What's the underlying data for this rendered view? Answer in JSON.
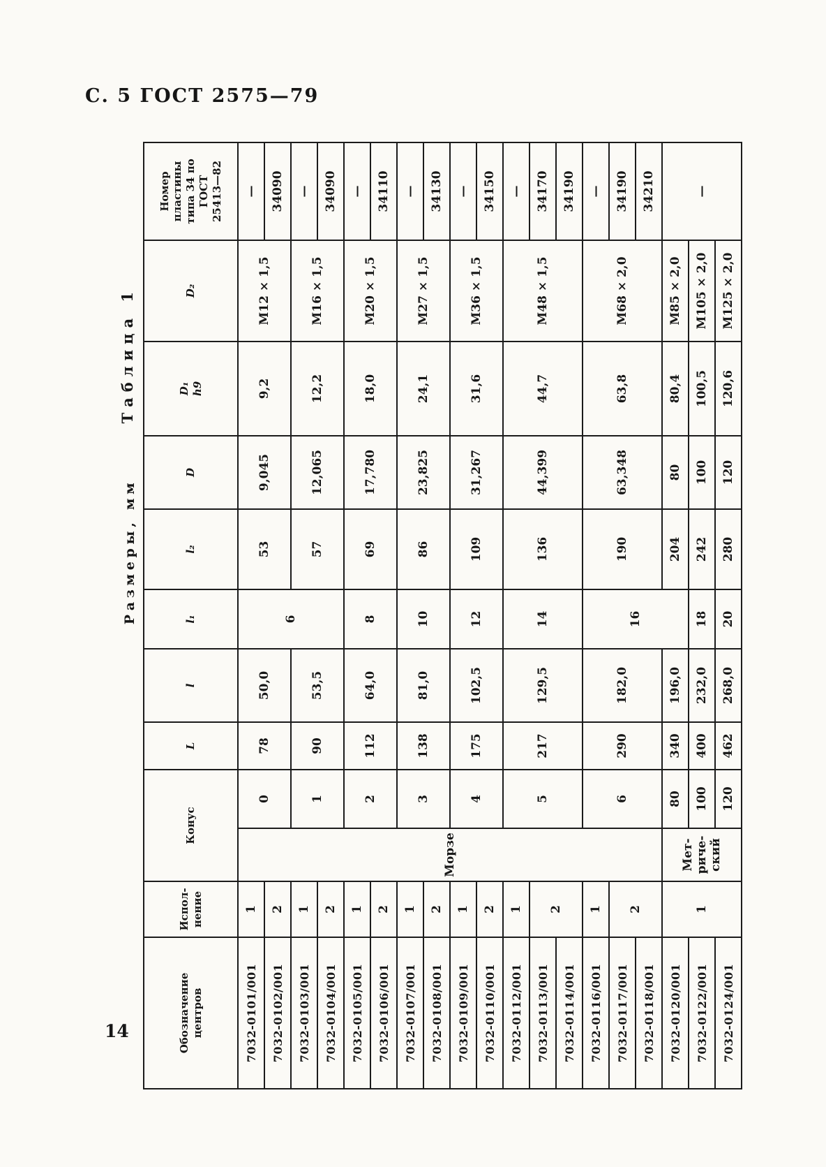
{
  "page": {
    "header_text": "С. 5 ГОСТ 2575—79",
    "page_number": "14",
    "ink_color": "#1b1b1b",
    "paper_color": "#fbfaf6"
  },
  "table": {
    "caption": "Таблица 1",
    "units_label": "Размеры, мм",
    "header": [
      {
        "t": "Обозначение\nцентров"
      },
      {
        "t": "Испол-\nнение"
      },
      {
        "t": "Конус",
        "colspan": 2
      },
      {
        "t": "L",
        "it": true
      },
      {
        "t": "l",
        "it": true
      },
      {
        "t": "l₁",
        "it": true
      },
      {
        "t": "l₂",
        "it": true
      },
      {
        "t": "D",
        "it": true
      },
      {
        "t": "D₁\nh9",
        "it": true
      },
      {
        "t": "D₂",
        "it": true
      },
      {
        "t": "Номер\nпластины\nтипа 34 по\nГОСТ\n25413—82"
      }
    ],
    "rows": [
      [
        {
          "t": "7032-0101/001"
        },
        {
          "t": "1"
        },
        {
          "t": "Морзе",
          "rs": 16
        },
        {
          "t": "0",
          "rs": 2
        },
        {
          "t": "78",
          "rs": 2
        },
        {
          "t": "50,0",
          "rs": 2
        },
        {
          "t": "6",
          "rs": 4
        },
        {
          "t": "53",
          "rs": 2
        },
        {
          "t": "9,045",
          "rs": 2
        },
        {
          "t": "9,2",
          "rs": 2
        },
        {
          "t": "М12 × 1,5",
          "rs": 2
        },
        {
          "t": "—"
        }
      ],
      [
        {
          "t": "7032-0102/001"
        },
        {
          "t": "2"
        },
        {
          "t": "34090"
        }
      ],
      [
        {
          "t": "7032-0103/001"
        },
        {
          "t": "1"
        },
        {
          "t": "1",
          "rs": 2
        },
        {
          "t": "90",
          "rs": 2
        },
        {
          "t": "53,5",
          "rs": 2
        },
        {
          "t": "57",
          "rs": 2
        },
        {
          "t": "12,065",
          "rs": 2
        },
        {
          "t": "12,2",
          "rs": 2
        },
        {
          "t": "М16 × 1,5",
          "rs": 2
        },
        {
          "t": "—"
        }
      ],
      [
        {
          "t": "7032-0104/001"
        },
        {
          "t": "2"
        },
        {
          "t": "34090"
        }
      ],
      [
        {
          "t": "7032-0105/001"
        },
        {
          "t": "1"
        },
        {
          "t": "2",
          "rs": 2
        },
        {
          "t": "112",
          "rs": 2
        },
        {
          "t": "64,0",
          "rs": 2
        },
        {
          "t": "8",
          "rs": 2
        },
        {
          "t": "69",
          "rs": 2
        },
        {
          "t": "17,780",
          "rs": 2
        },
        {
          "t": "18,0",
          "rs": 2
        },
        {
          "t": "М20 × 1,5",
          "rs": 2
        },
        {
          "t": "—"
        }
      ],
      [
        {
          "t": "7032-0106/001"
        },
        {
          "t": "2"
        },
        {
          "t": "34110"
        }
      ],
      [
        {
          "t": "7032-0107/001"
        },
        {
          "t": "1"
        },
        {
          "t": "3",
          "rs": 2
        },
        {
          "t": "138",
          "rs": 2
        },
        {
          "t": "81,0",
          "rs": 2
        },
        {
          "t": "10",
          "rs": 2
        },
        {
          "t": "86",
          "rs": 2
        },
        {
          "t": "23,825",
          "rs": 2
        },
        {
          "t": "24,1",
          "rs": 2
        },
        {
          "t": "М27 × 1,5",
          "rs": 2
        },
        {
          "t": "—"
        }
      ],
      [
        {
          "t": "7032-0108/001"
        },
        {
          "t": "2"
        },
        {
          "t": "34130"
        }
      ],
      [
        {
          "t": "7032-0109/001"
        },
        {
          "t": "1"
        },
        {
          "t": "4",
          "rs": 2
        },
        {
          "t": "175",
          "rs": 2
        },
        {
          "t": "102,5",
          "rs": 2
        },
        {
          "t": "12",
          "rs": 2
        },
        {
          "t": "109",
          "rs": 2
        },
        {
          "t": "31,267",
          "rs": 2
        },
        {
          "t": "31,6",
          "rs": 2
        },
        {
          "t": "М36 × 1,5",
          "rs": 2
        },
        {
          "t": "—"
        }
      ],
      [
        {
          "t": "7032-0110/001"
        },
        {
          "t": "2"
        },
        {
          "t": "34150"
        }
      ],
      [
        {
          "t": "7032-0112/001"
        },
        {
          "t": "1"
        },
        {
          "t": "5",
          "rs": 3
        },
        {
          "t": "217",
          "rs": 3
        },
        {
          "t": "129,5",
          "rs": 3
        },
        {
          "t": "14",
          "rs": 3
        },
        {
          "t": "136",
          "rs": 3
        },
        {
          "t": "44,399",
          "rs": 3
        },
        {
          "t": "44,7",
          "rs": 3
        },
        {
          "t": "М48 × 1,5",
          "rs": 3
        },
        {
          "t": "—"
        }
      ],
      [
        {
          "t": "7032-0113/001"
        },
        {
          "t": "2",
          "rs": 2
        },
        {
          "t": "34170"
        }
      ],
      [
        {
          "t": "7032-0114/001"
        },
        {
          "t": "34190"
        }
      ],
      [
        {
          "t": "7032-0116/001"
        },
        {
          "t": "1"
        },
        {
          "t": "6",
          "rs": 3
        },
        {
          "t": "290",
          "rs": 3
        },
        {
          "t": "182,0",
          "rs": 3
        },
        {
          "t": "16",
          "rs": 4
        },
        {
          "t": "190",
          "rs": 3
        },
        {
          "t": "63,348",
          "rs": 3
        },
        {
          "t": "63,8",
          "rs": 3
        },
        {
          "t": "М68 × 2,0",
          "rs": 3
        },
        {
          "t": "—"
        }
      ],
      [
        {
          "t": "7032-0117/001"
        },
        {
          "t": "2",
          "rs": 2
        },
        {
          "t": "34190"
        }
      ],
      [
        {
          "t": "7032-0118/001"
        },
        {
          "t": "34210"
        }
      ],
      [
        {
          "t": "7032-0120/001"
        },
        {
          "t": "1",
          "rs": 3
        },
        {
          "t": "Мет-\nриче-\nский",
          "rs": 3
        },
        {
          "t": "80"
        },
        {
          "t": "340"
        },
        {
          "t": "196,0"
        },
        {
          "t": "204"
        },
        {
          "t": "80"
        },
        {
          "t": "80,4"
        },
        {
          "t": "М85 × 2,0"
        },
        {
          "t": "—",
          "rs": 3
        }
      ],
      [
        {
          "t": "7032-0122/001"
        },
        {
          "t": "100"
        },
        {
          "t": "400"
        },
        {
          "t": "232,0"
        },
        {
          "t": "18"
        },
        {
          "t": "242"
        },
        {
          "t": "100"
        },
        {
          "t": "100,5"
        },
        {
          "t": "М105 × 2,0"
        }
      ],
      [
        {
          "t": "7032-0124/001"
        },
        {
          "t": "120"
        },
        {
          "t": "462"
        },
        {
          "t": "268,0"
        },
        {
          "t": "20"
        },
        {
          "t": "280"
        },
        {
          "t": "120"
        },
        {
          "t": "120,6"
        },
        {
          "t": "М125 × 2,0"
        }
      ]
    ]
  }
}
